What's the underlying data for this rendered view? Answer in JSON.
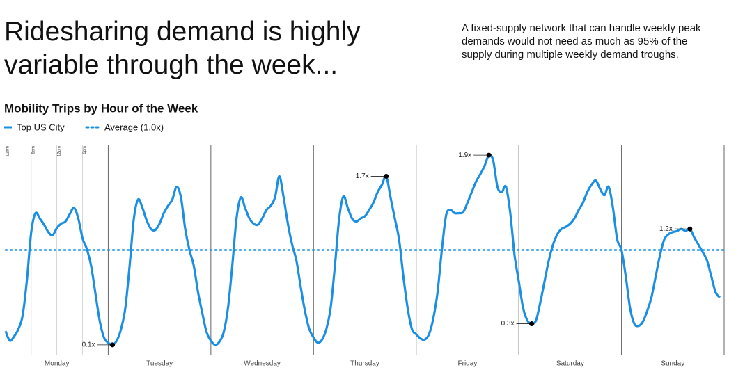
{
  "chart_data": {
    "type": "line",
    "title": "Ridesharing demand is highly variable through the week...",
    "description": "A fixed-supply network that can handle weekly peak demands would not need as much as 95% of the supply during multiple weekly demand troughs.",
    "subtitle": "Mobility Trips by Hour of the Week",
    "days": [
      "Monday",
      "Tuesday",
      "Wednesday",
      "Thursday",
      "Friday",
      "Saturday",
      "Sunday"
    ],
    "xlim": [
      0,
      168
    ],
    "xticks": [
      {
        "value": 0,
        "label": "12am"
      },
      {
        "value": 6,
        "label": "6am"
      },
      {
        "value": 12,
        "label": "12pm"
      },
      {
        "value": 18,
        "label": "6pm"
      }
    ],
    "ylim": [
      0,
      2
    ],
    "series": [
      {
        "name": "Top US City",
        "color": "#1a8fe3",
        "values": [
          0.23,
          0.14,
          0.18,
          0.25,
          0.38,
          0.72,
          1.17,
          1.35,
          1.3,
          1.24,
          1.17,
          1.14,
          1.21,
          1.25,
          1.27,
          1.34,
          1.4,
          1.3,
          1.11,
          1.01,
          0.85,
          0.59,
          0.33,
          0.17,
          0.12,
          0.1,
          0.14,
          0.25,
          0.45,
          0.85,
          1.3,
          1.48,
          1.4,
          1.28,
          1.2,
          1.19,
          1.25,
          1.35,
          1.42,
          1.48,
          1.6,
          1.5,
          1.2,
          1.0,
          0.85,
          0.6,
          0.4,
          0.22,
          0.14,
          0.1,
          0.13,
          0.22,
          0.45,
          0.85,
          1.3,
          1.5,
          1.4,
          1.3,
          1.25,
          1.24,
          1.3,
          1.38,
          1.42,
          1.5,
          1.7,
          1.5,
          1.25,
          1.05,
          0.9,
          0.65,
          0.42,
          0.25,
          0.17,
          0.12,
          0.15,
          0.25,
          0.45,
          0.85,
          1.3,
          1.51,
          1.4,
          1.3,
          1.27,
          1.3,
          1.32,
          1.38,
          1.45,
          1.55,
          1.62,
          1.7,
          1.5,
          1.3,
          1.1,
          0.75,
          0.45,
          0.25,
          0.2,
          0.16,
          0.15,
          0.2,
          0.35,
          0.6,
          1.0,
          1.33,
          1.38,
          1.35,
          1.35,
          1.36,
          1.45,
          1.55,
          1.65,
          1.72,
          1.8,
          1.9,
          1.85,
          1.6,
          1.55,
          1.6,
          1.35,
          0.95,
          0.7,
          0.45,
          0.33,
          0.3,
          0.33,
          0.5,
          0.7,
          0.9,
          1.05,
          1.15,
          1.2,
          1.22,
          1.25,
          1.3,
          1.38,
          1.45,
          1.55,
          1.62,
          1.66,
          1.58,
          1.52,
          1.6,
          1.4,
          1.1,
          1.0,
          0.75,
          0.45,
          0.3,
          0.28,
          0.32,
          0.42,
          0.55,
          0.75,
          0.95,
          1.1,
          1.15,
          1.17,
          1.18,
          1.2,
          1.18,
          1.2,
          1.12,
          1.05,
          0.98,
          0.9,
          0.75,
          0.6,
          0.55
        ]
      }
    ],
    "reference": {
      "name": "Average (1.0x)",
      "value": 1,
      "color": "#1a8fe3"
    },
    "annotations": [
      {
        "text": "0.1x",
        "x": 25,
        "y": 0.1
      },
      {
        "text": "1.7x",
        "x": 89,
        "y": 1.7
      },
      {
        "text": "1.9x",
        "x": 113,
        "y": 1.9
      },
      {
        "text": "0.3x",
        "x": 123,
        "y": 0.3
      },
      {
        "text": "1.2x",
        "x": 160,
        "y": 1.2
      }
    ]
  }
}
